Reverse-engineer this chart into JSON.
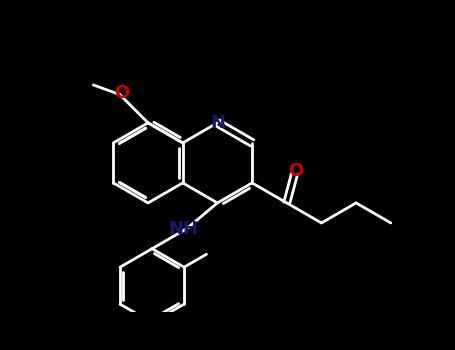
{
  "bg": "#000000",
  "wc": "#ffffff",
  "nc": "#191970",
  "oc": "#cc0000",
  "lw": 2.0,
  "fig_w": 4.55,
  "fig_h": 3.5,
  "xlim": [
    0,
    455
  ],
  "ylim": [
    0,
    350
  ]
}
